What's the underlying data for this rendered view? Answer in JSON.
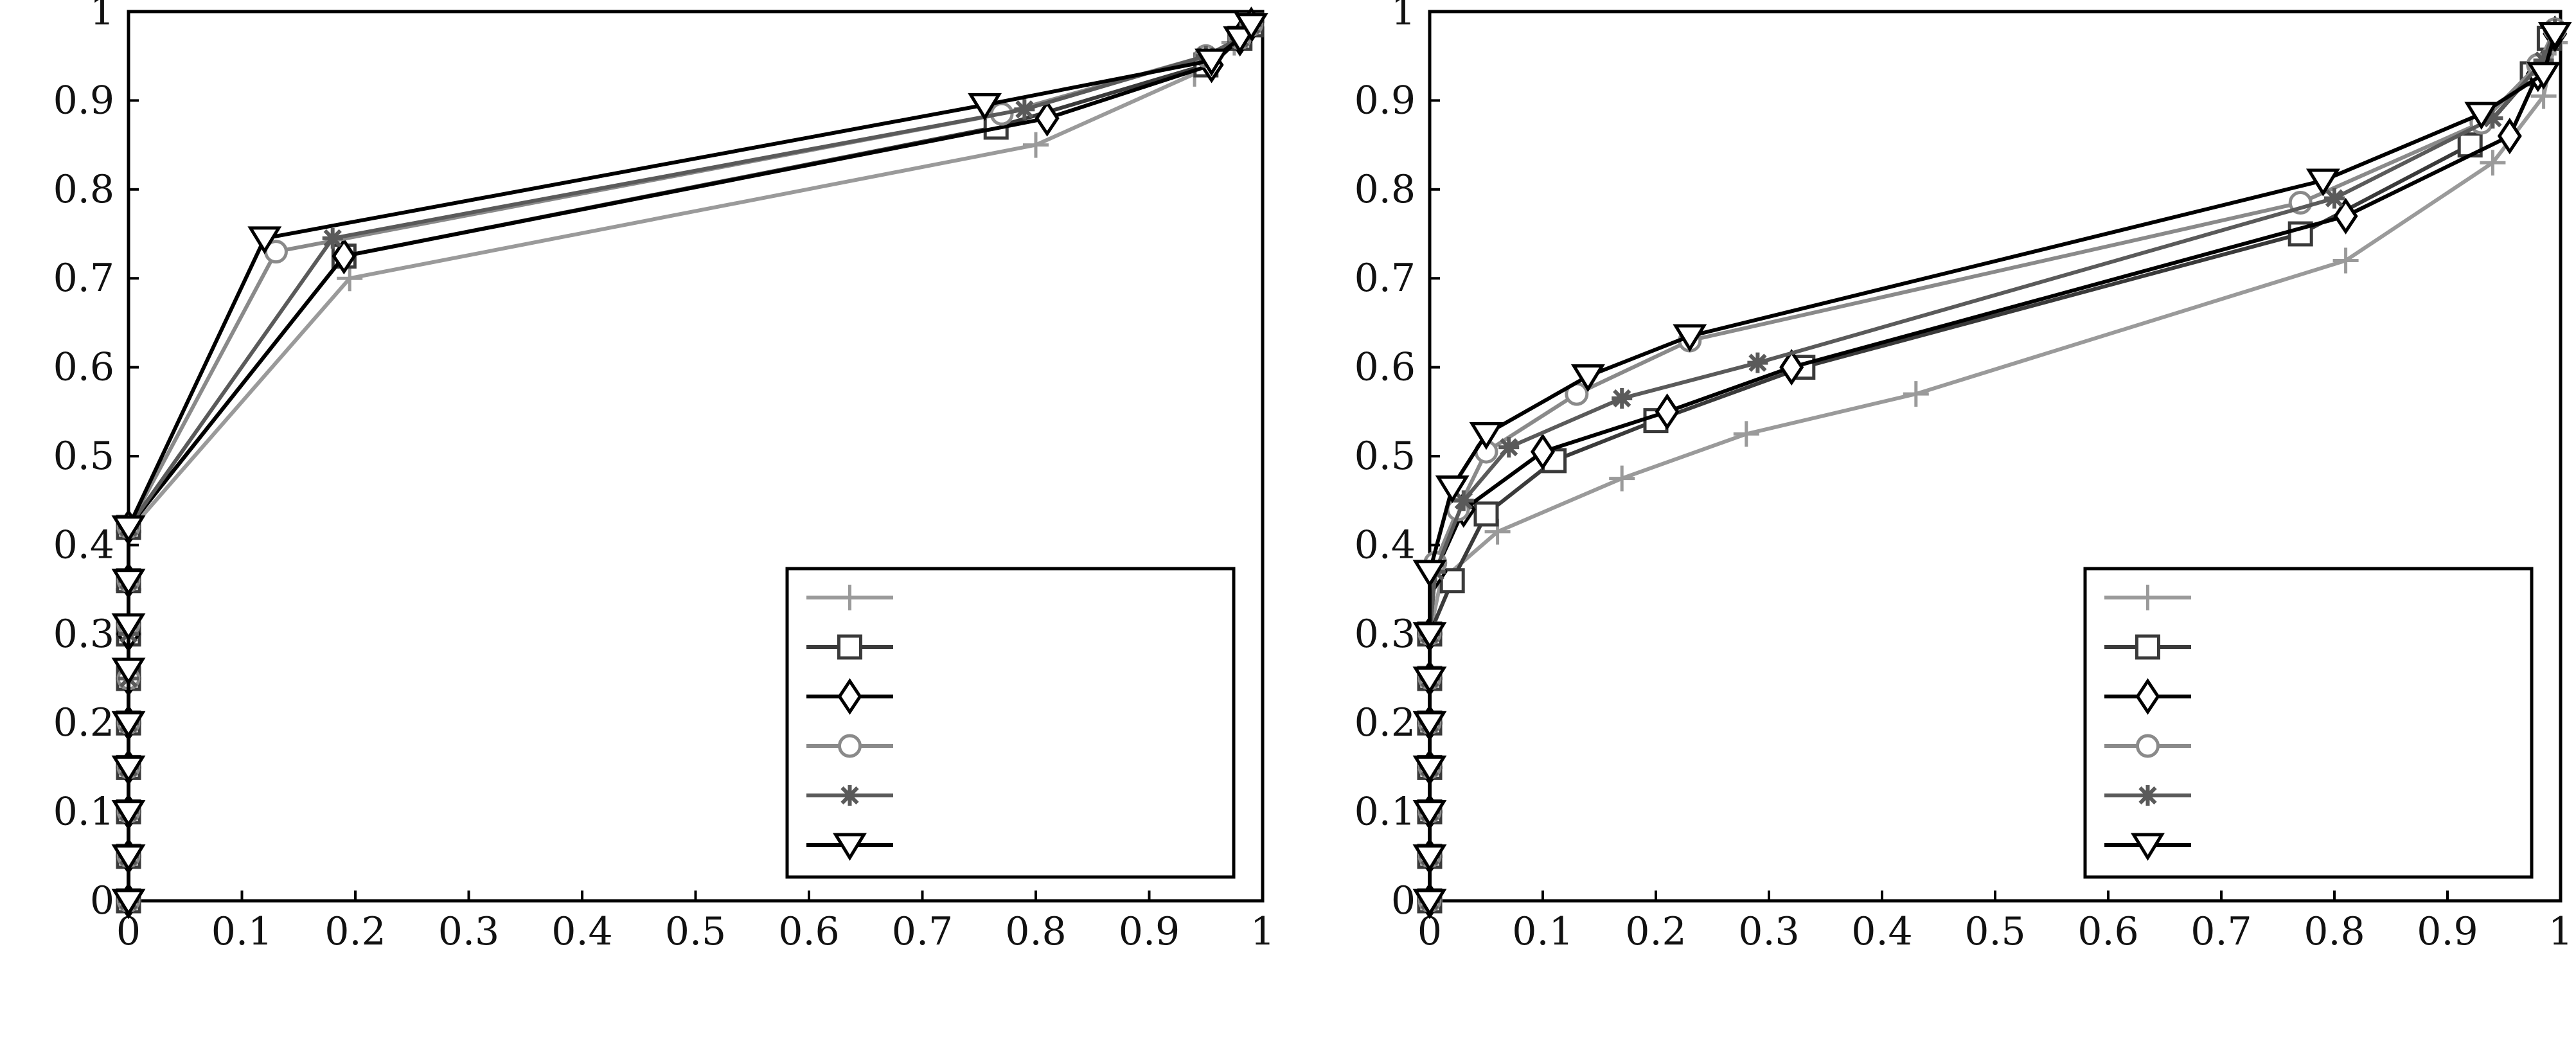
{
  "chart_data": [
    {
      "type": "line",
      "title": "",
      "xlabel": "",
      "ylabel": "",
      "xlim": [
        0,
        1
      ],
      "ylim": [
        0,
        1
      ],
      "grid": false,
      "legend_position": "bottom-right",
      "xticks": [
        "0",
        "0.1",
        "0.2",
        "0.3",
        "0.4",
        "0.5",
        "0.6",
        "0.7",
        "0.8",
        "0.9",
        "1"
      ],
      "yticks": [
        "0",
        "0.1",
        "0.2",
        "0.3",
        "0.4",
        "0.5",
        "0.6",
        "0.7",
        "0.8",
        "0.9",
        "1"
      ],
      "series": [
        {
          "marker": "plus",
          "color": "#9a9a9a",
          "points": [
            [
              0,
              0
            ],
            [
              0,
              0.05
            ],
            [
              0,
              0.1
            ],
            [
              0,
              0.15
            ],
            [
              0,
              0.2
            ],
            [
              0,
              0.25
            ],
            [
              0,
              0.3
            ],
            [
              0,
              0.35
            ],
            [
              0,
              0.415
            ],
            [
              0.195,
              0.7
            ],
            [
              0.8,
              0.85
            ],
            [
              0.94,
              0.93
            ],
            [
              0.975,
              0.965
            ],
            [
              0.99,
              0.985
            ]
          ]
        },
        {
          "marker": "square",
          "color": "#3a3a3a",
          "points": [
            [
              0,
              0
            ],
            [
              0,
              0.05
            ],
            [
              0,
              0.1
            ],
            [
              0,
              0.15
            ],
            [
              0,
              0.2
            ],
            [
              0,
              0.25
            ],
            [
              0,
              0.3
            ],
            [
              0,
              0.36
            ],
            [
              0,
              0.42
            ],
            [
              0.19,
              0.725
            ],
            [
              0.765,
              0.87
            ],
            [
              0.95,
              0.94
            ],
            [
              0.98,
              0.97
            ],
            [
              0.99,
              0.985
            ]
          ]
        },
        {
          "marker": "diamond",
          "color": "#000000",
          "points": [
            [
              0,
              0
            ],
            [
              0,
              0.05
            ],
            [
              0,
              0.1
            ],
            [
              0,
              0.15
            ],
            [
              0,
              0.2
            ],
            [
              0,
              0.25
            ],
            [
              0,
              0.3
            ],
            [
              0,
              0.36
            ],
            [
              0,
              0.42
            ],
            [
              0.19,
              0.725
            ],
            [
              0.81,
              0.88
            ],
            [
              0.955,
              0.94
            ],
            [
              0.98,
              0.97
            ],
            [
              0.99,
              0.985
            ]
          ]
        },
        {
          "marker": "circle",
          "color": "#8a8a8a",
          "points": [
            [
              0,
              0
            ],
            [
              0,
              0.05
            ],
            [
              0,
              0.1
            ],
            [
              0,
              0.15
            ],
            [
              0,
              0.2
            ],
            [
              0,
              0.25
            ],
            [
              0,
              0.31
            ],
            [
              0,
              0.36
            ],
            [
              0,
              0.42
            ],
            [
              0.13,
              0.73
            ],
            [
              0.77,
              0.885
            ],
            [
              0.95,
              0.95
            ],
            [
              0.98,
              0.97
            ],
            [
              0.99,
              0.985
            ]
          ]
        },
        {
          "marker": "star",
          "color": "#5a5a5a",
          "points": [
            [
              0,
              0
            ],
            [
              0,
              0.05
            ],
            [
              0,
              0.1
            ],
            [
              0,
              0.15
            ],
            [
              0,
              0.2
            ],
            [
              0,
              0.25
            ],
            [
              0,
              0.3
            ],
            [
              0,
              0.36
            ],
            [
              0,
              0.42
            ],
            [
              0.18,
              0.745
            ],
            [
              0.79,
              0.89
            ],
            [
              0.95,
              0.95
            ],
            [
              0.98,
              0.97
            ],
            [
              0.99,
              0.985
            ]
          ]
        },
        {
          "marker": "triangle-down",
          "color": "#000000",
          "points": [
            [
              0,
              0
            ],
            [
              0,
              0.05
            ],
            [
              0,
              0.1
            ],
            [
              0,
              0.15
            ],
            [
              0,
              0.2
            ],
            [
              0,
              0.26
            ],
            [
              0,
              0.31
            ],
            [
              0,
              0.36
            ],
            [
              0,
              0.42
            ],
            [
              0.12,
              0.745
            ],
            [
              0.755,
              0.895
            ],
            [
              0.955,
              0.945
            ],
            [
              0.98,
              0.97
            ],
            [
              0.99,
              0.985
            ]
          ]
        }
      ],
      "legend": [
        {
          "label": ""
        },
        {
          "label": ""
        },
        {
          "label": ""
        },
        {
          "label": ""
        },
        {
          "label": ""
        },
        {
          "label": ""
        }
      ]
    },
    {
      "type": "line",
      "title": "",
      "xlabel": "",
      "ylabel": "",
      "xlim": [
        0,
        1
      ],
      "ylim": [
        0,
        1
      ],
      "grid": false,
      "legend_position": "bottom-right",
      "xticks": [
        "0",
        "0.1",
        "0.2",
        "0.3",
        "0.4",
        "0.5",
        "0.6",
        "0.7",
        "0.8",
        "0.9",
        "1"
      ],
      "yticks": [
        "0",
        "0.1",
        "0.2",
        "0.3",
        "0.4",
        "0.5",
        "0.6",
        "0.7",
        "0.8",
        "0.9",
        "1"
      ],
      "series": [
        {
          "marker": "plus",
          "color": "#9a9a9a",
          "points": [
            [
              0,
              0
            ],
            [
              0,
              0.05
            ],
            [
              0,
              0.1
            ],
            [
              0,
              0.15
            ],
            [
              0,
              0.2
            ],
            [
              0,
              0.25
            ],
            [
              0,
              0.3
            ],
            [
              0.01,
              0.36
            ],
            [
              0.06,
              0.415
            ],
            [
              0.17,
              0.475
            ],
            [
              0.28,
              0.525
            ],
            [
              0.43,
              0.57
            ],
            [
              0.81,
              0.72
            ],
            [
              0.94,
              0.83
            ],
            [
              0.985,
              0.905
            ],
            [
              0.995,
              0.965
            ]
          ]
        },
        {
          "marker": "square",
          "color": "#3a3a3a",
          "points": [
            [
              0,
              0
            ],
            [
              0,
              0.05
            ],
            [
              0,
              0.1
            ],
            [
              0,
              0.15
            ],
            [
              0,
              0.2
            ],
            [
              0,
              0.25
            ],
            [
              0,
              0.3
            ],
            [
              0.02,
              0.36
            ],
            [
              0.05,
              0.435
            ],
            [
              0.11,
              0.495
            ],
            [
              0.2,
              0.54
            ],
            [
              0.33,
              0.6
            ],
            [
              0.77,
              0.75
            ],
            [
              0.92,
              0.85
            ],
            [
              0.975,
              0.93
            ],
            [
              0.99,
              0.97
            ]
          ]
        },
        {
          "marker": "diamond",
          "color": "#000000",
          "points": [
            [
              0,
              0
            ],
            [
              0,
              0.05
            ],
            [
              0,
              0.1
            ],
            [
              0,
              0.15
            ],
            [
              0,
              0.2
            ],
            [
              0,
              0.25
            ],
            [
              0,
              0.3
            ],
            [
              0.005,
              0.37
            ],
            [
              0.03,
              0.44
            ],
            [
              0.1,
              0.505
            ],
            [
              0.21,
              0.55
            ],
            [
              0.32,
              0.6
            ],
            [
              0.81,
              0.77
            ],
            [
              0.955,
              0.86
            ],
            [
              0.98,
              0.93
            ],
            [
              0.995,
              0.975
            ]
          ]
        },
        {
          "marker": "circle",
          "color": "#8a8a8a",
          "points": [
            [
              0,
              0
            ],
            [
              0,
              0.05
            ],
            [
              0,
              0.1
            ],
            [
              0,
              0.15
            ],
            [
              0,
              0.2
            ],
            [
              0,
              0.25
            ],
            [
              0,
              0.3
            ],
            [
              0.005,
              0.38
            ],
            [
              0.025,
              0.44
            ],
            [
              0.05,
              0.505
            ],
            [
              0.13,
              0.57
            ],
            [
              0.23,
              0.63
            ],
            [
              0.77,
              0.785
            ],
            [
              0.93,
              0.875
            ],
            [
              0.98,
              0.94
            ],
            [
              0.995,
              0.98
            ]
          ]
        },
        {
          "marker": "star",
          "color": "#5a5a5a",
          "points": [
            [
              0,
              0
            ],
            [
              0,
              0.05
            ],
            [
              0,
              0.1
            ],
            [
              0,
              0.15
            ],
            [
              0,
              0.2
            ],
            [
              0,
              0.25
            ],
            [
              0,
              0.3
            ],
            [
              0.005,
              0.37
            ],
            [
              0.03,
              0.45
            ],
            [
              0.07,
              0.51
            ],
            [
              0.17,
              0.565
            ],
            [
              0.29,
              0.605
            ],
            [
              0.8,
              0.79
            ],
            [
              0.94,
              0.88
            ],
            [
              0.985,
              0.945
            ],
            [
              0.995,
              0.98
            ]
          ]
        },
        {
          "marker": "triangle-down",
          "color": "#000000",
          "points": [
            [
              0,
              0
            ],
            [
              0,
              0.05
            ],
            [
              0,
              0.1
            ],
            [
              0,
              0.15
            ],
            [
              0,
              0.2
            ],
            [
              0,
              0.25
            ],
            [
              0,
              0.3
            ],
            [
              0,
              0.37
            ],
            [
              0.02,
              0.465
            ],
            [
              0.05,
              0.525
            ],
            [
              0.14,
              0.59
            ],
            [
              0.23,
              0.635
            ],
            [
              0.79,
              0.81
            ],
            [
              0.93,
              0.885
            ],
            [
              0.985,
              0.93
            ],
            [
              0.995,
              0.975
            ]
          ]
        }
      ],
      "legend": [
        {
          "label": ""
        },
        {
          "label": ""
        },
        {
          "label": ""
        },
        {
          "label": ""
        },
        {
          "label": ""
        },
        {
          "label": ""
        }
      ]
    }
  ]
}
